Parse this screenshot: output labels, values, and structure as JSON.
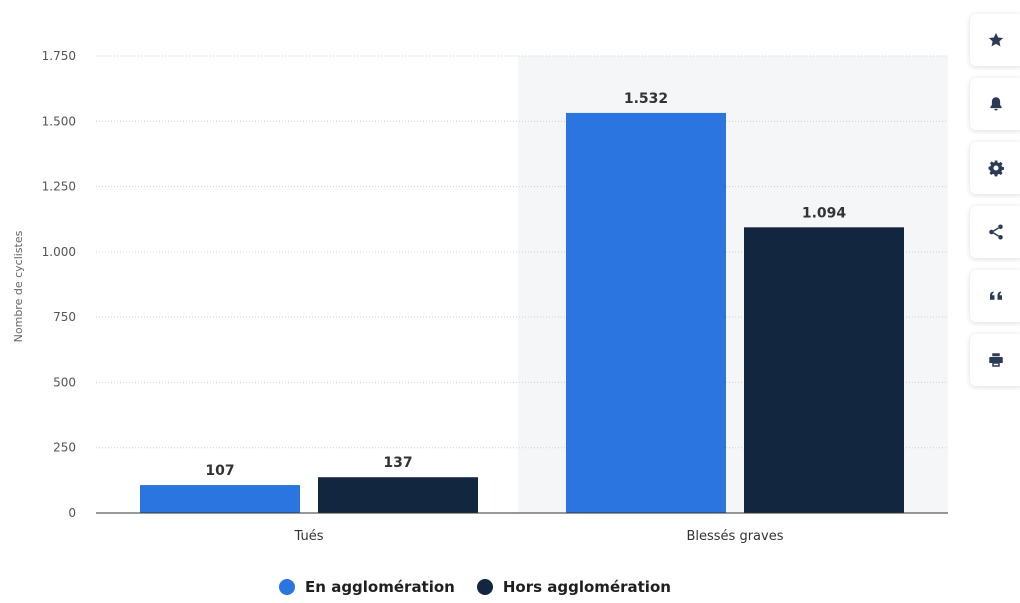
{
  "chart_data": {
    "type": "bar",
    "categories": [
      "Tués",
      "Blessés graves"
    ],
    "series": [
      {
        "name": "En agglomération",
        "values": [
          107,
          1532
        ],
        "labels": [
          "107",
          "1.532"
        ],
        "color": "#2a75e0"
      },
      {
        "name": "Hors agglomération",
        "values": [
          137,
          1094
        ],
        "labels": [
          "137",
          "1.094"
        ],
        "color": "#12263f"
      }
    ],
    "ylabel": "Nombre de cyclistes",
    "ylim": [
      0,
      1750
    ],
    "yticks": [
      0,
      250,
      500,
      750,
      1000,
      1250,
      1500,
      1750
    ],
    "ytick_labels": [
      "0",
      "250",
      "500",
      "750",
      "1.000",
      "1.250",
      "1.500",
      "1.750"
    ],
    "grid": true,
    "highlighted_category": "Blessés graves",
    "legend_position": "bottom"
  },
  "legend": {
    "item1": "En agglomération",
    "item2": "Hors agglomération"
  },
  "toolbar": {
    "buttons": [
      "star-icon",
      "bell-icon",
      "gear-icon",
      "share-icon",
      "quote-icon",
      "print-icon"
    ]
  },
  "colors": {
    "highlight_bg": "#f5f6f8",
    "grid": "#cfcfcf"
  }
}
